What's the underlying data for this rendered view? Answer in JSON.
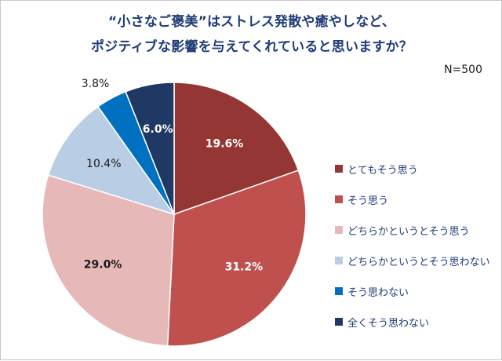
{
  "chart_data": {
    "type": "pie",
    "title": "“小さなご褒美”はストレス発散や癒やしなど、",
    "subtitle": "ポジティブな影響を与えてくれていると思いますか？",
    "annotation": "N=500",
    "slices": [
      {
        "label": "とてもそう思う",
        "value": 19.6,
        "display": "19.6%",
        "color": "#943634"
      },
      {
        "label": "そう思う",
        "value": 31.2,
        "display": "31.2%",
        "color": "#c0504d"
      },
      {
        "label": "どちらかというとそう思う",
        "value": 29.0,
        "display": "29.0%",
        "color": "#e6b9b8"
      },
      {
        "label": "どちらかというとそう思わない",
        "value": 10.4,
        "display": "10.4%",
        "color": "#b9cde5"
      },
      {
        "label": "そう思わない",
        "value": 3.8,
        "display": "3.8%",
        "color": "#0070c0"
      },
      {
        "label": "全くそう思わない",
        "value": 6.0,
        "display": "6.0%",
        "color": "#1f3864"
      }
    ],
    "legend_position": "right"
  }
}
